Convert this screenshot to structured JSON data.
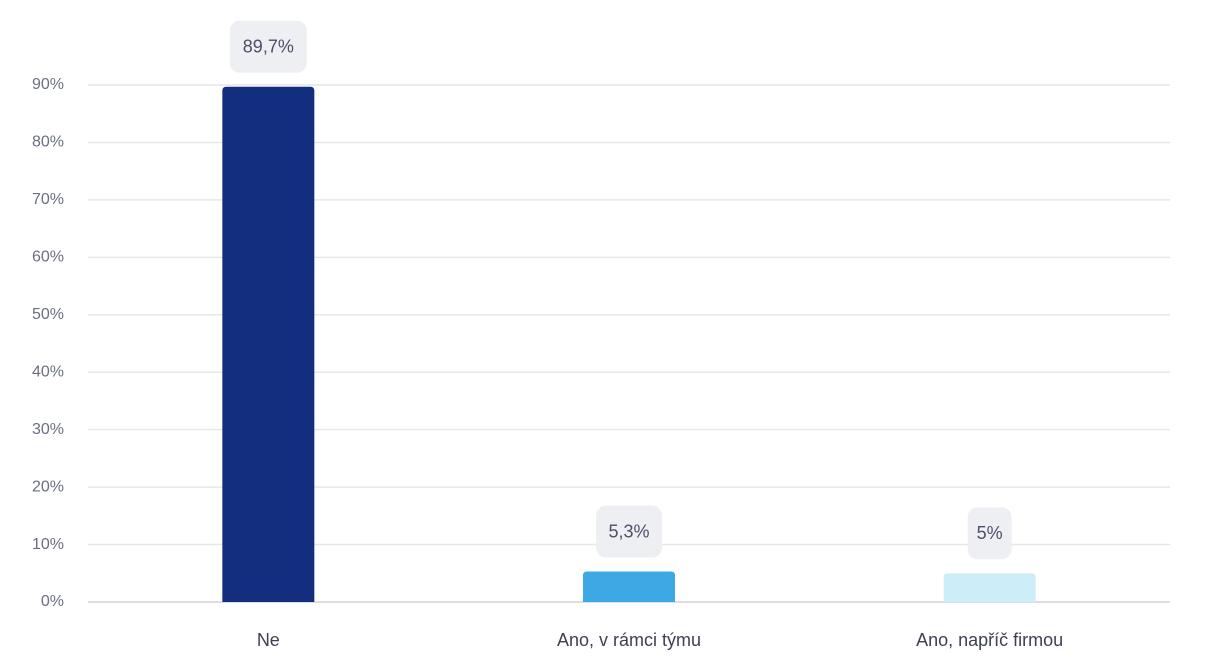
{
  "chart_data": {
    "type": "bar",
    "categories": [
      "Ne",
      "Ano, v rámci týmu",
      "Ano, napříč firmou"
    ],
    "values": [
      89.7,
      5.3,
      5
    ],
    "value_labels": [
      "89,7%",
      "5,3%",
      "5%"
    ],
    "colors": [
      "#132e7e",
      "#3ca8e4",
      "#cdeef8"
    ],
    "ylim": [
      0,
      90
    ],
    "yticks": [
      {
        "value": 0,
        "label": "0%"
      },
      {
        "value": 10,
        "label": "10%"
      },
      {
        "value": 20,
        "label": "20%"
      },
      {
        "value": 30,
        "label": "30%"
      },
      {
        "value": 40,
        "label": "40%"
      },
      {
        "value": 50,
        "label": "50%"
      },
      {
        "value": 60,
        "label": "60%"
      },
      {
        "value": 70,
        "label": "70%"
      },
      {
        "value": 80,
        "label": "80%"
      },
      {
        "value": 90,
        "label": "90%"
      }
    ],
    "grid": true
  }
}
